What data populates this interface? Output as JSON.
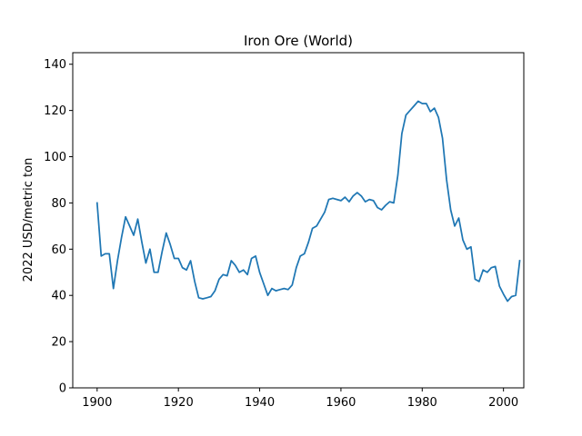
{
  "chart_data": {
    "type": "line",
    "title": "Iron Ore (World)",
    "xlabel": "",
    "ylabel": "2022 USD/metric ton",
    "xlim": [
      1894,
      2005
    ],
    "ylim": [
      0,
      145
    ],
    "x_ticks": [
      1900,
      1920,
      1940,
      1960,
      1980,
      2000,
      2020
    ],
    "x_tick_labels": [
      "1900",
      "1920",
      "1940",
      "1960",
      "1980",
      "2000",
      ""
    ],
    "y_ticks": [
      0,
      20,
      40,
      60,
      80,
      100,
      120,
      140
    ],
    "grid": false,
    "legend": "none",
    "series": [
      {
        "color": "#1f77b4",
        "x": [
          1900,
          1901,
          1902,
          1903,
          1904,
          1905,
          1906,
          1907,
          1908,
          1909,
          1910,
          1911,
          1912,
          1913,
          1914,
          1915,
          1916,
          1917,
          1918,
          1919,
          1920,
          1921,
          1922,
          1923,
          1924,
          1925,
          1926,
          1927,
          1928,
          1929,
          1930,
          1931,
          1932,
          1933,
          1934,
          1935,
          1936,
          1937,
          1938,
          1939,
          1940,
          1941,
          1942,
          1943,
          1944,
          1945,
          1946,
          1947,
          1948,
          1949,
          1950,
          1951,
          1952,
          1953,
          1954,
          1955,
          1956,
          1957,
          1958,
          1959,
          1960,
          1961,
          1962,
          1963,
          1964,
          1965,
          1966,
          1967,
          1968,
          1969,
          1970,
          1971,
          1972,
          1973,
          1974,
          1975,
          1976,
          1977,
          1978,
          1979,
          1980,
          1981,
          1982,
          1983,
          1984,
          1985,
          1986,
          1987,
          1988,
          1989,
          1990,
          1991,
          1992,
          1993,
          1994,
          1995,
          1996,
          1997,
          1998,
          1999,
          2000,
          2001,
          2002,
          2003,
          2004
        ],
        "y": [
          80,
          57,
          58,
          58,
          43,
          55,
          65,
          74,
          70,
          66,
          73,
          63,
          54,
          60,
          50,
          50,
          59,
          67,
          62,
          56,
          56,
          52,
          51,
          55,
          46,
          39,
          38.5,
          39,
          39.5,
          42,
          47,
          49,
          48.5,
          55,
          53,
          50,
          51,
          49,
          56,
          57,
          50,
          45,
          40,
          43,
          42,
          42.5,
          43,
          42.5,
          44.5,
          52,
          57,
          58,
          63,
          69,
          70,
          73,
          76,
          81.5,
          82,
          81.5,
          81,
          82.5,
          80.5,
          83,
          84.5,
          83,
          80.5,
          81.5,
          81,
          78,
          77,
          79,
          80.5,
          80,
          92,
          110,
          118,
          120,
          122,
          124,
          123,
          123,
          119.5,
          121,
          117,
          108,
          90,
          77,
          70,
          73.5,
          64,
          60,
          61,
          47,
          46,
          51,
          50,
          52,
          52.5,
          44,
          40.5,
          37.5,
          39.5,
          40,
          55
        ]
      }
    ]
  }
}
